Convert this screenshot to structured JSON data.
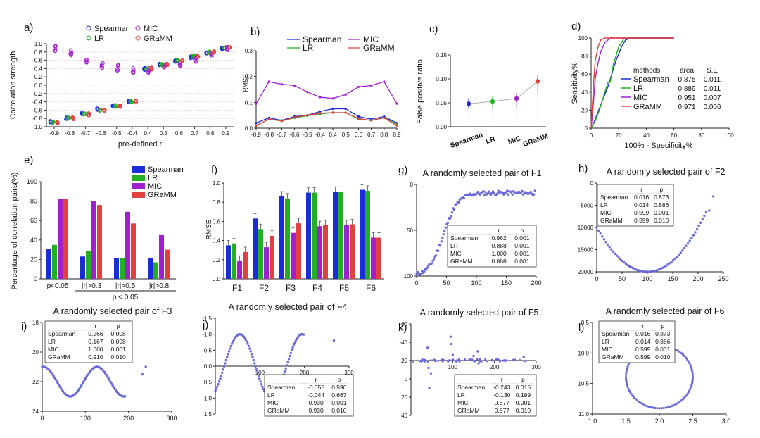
{
  "colors": {
    "spearman": "#1a2bd8",
    "lr": "#22b022",
    "mic": "#a020d0",
    "gramm": "#e04040",
    "point": "#6a6ad8",
    "axis": "#222222"
  },
  "series_names": [
    "Spearman",
    "LR",
    "MIC",
    "GRaMM"
  ],
  "panel_labels": [
    "a)",
    "b)",
    "c)",
    "d)",
    "e)",
    "f)",
    "g)",
    "h)",
    "i)",
    "j)",
    "k)",
    "l)"
  ],
  "chart_data": [
    {
      "id": "a",
      "type": "scatter",
      "ylabel": "Correlation strength",
      "xlabel": "pre-defined r",
      "categories": [
        "-0.9",
        "-0.8",
        "-0.7",
        "-0.6",
        "-0.5",
        "-0.4",
        "0.4",
        "0.5",
        "0.6",
        "0.7",
        "0.8",
        "0.9"
      ],
      "yticks": [
        "-1.0",
        "-0.8",
        "-0.6",
        "-0.4",
        "-0.2",
        "0.0",
        "0.2",
        "0.4",
        "0.6",
        "0.8",
        "1.0"
      ],
      "ylim": [
        -1,
        1
      ],
      "series": [
        {
          "name": "Spearman",
          "values": [
            -0.88,
            -0.79,
            -0.68,
            -0.58,
            -0.49,
            -0.39,
            0.39,
            0.49,
            0.58,
            0.68,
            0.79,
            0.88
          ]
        },
        {
          "name": "LR",
          "values": [
            -0.89,
            -0.8,
            -0.7,
            -0.6,
            -0.5,
            -0.4,
            0.4,
            0.5,
            0.6,
            0.7,
            0.8,
            0.9
          ]
        },
        {
          "name": "MIC",
          "values": [
            0.88,
            0.78,
            0.6,
            0.48,
            0.42,
            0.35,
            0.35,
            0.45,
            0.5,
            0.62,
            0.75,
            0.88
          ]
        },
        {
          "name": "GRaMM",
          "values": [
            -0.9,
            -0.8,
            -0.7,
            -0.6,
            -0.5,
            -0.4,
            0.4,
            0.5,
            0.6,
            0.7,
            0.8,
            0.9
          ]
        }
      ],
      "legend": "top"
    },
    {
      "id": "b",
      "type": "line",
      "ylabel": "RMSE",
      "categories": [
        "-0.9",
        "-0.8",
        "-0.7",
        "-0.6",
        "-0.5",
        "-0.4",
        "0.4",
        "0.5",
        "0.6",
        "0.7",
        "0.8",
        "0.9"
      ],
      "yticks": [
        "0.0",
        "0.1",
        "0.2",
        "0.3"
      ],
      "ylim": [
        0,
        0.3
      ],
      "series": [
        {
          "name": "Spearman",
          "values": [
            0.02,
            0.04,
            0.03,
            0.045,
            0.05,
            0.065,
            0.075,
            0.075,
            0.045,
            0.035,
            0.045,
            0.02
          ]
        },
        {
          "name": "LR",
          "values": [
            0.01,
            0.035,
            0.028,
            0.04,
            0.048,
            0.055,
            0.06,
            0.06,
            0.035,
            0.03,
            0.04,
            0.015
          ]
        },
        {
          "name": "MIC",
          "values": [
            0.095,
            0.18,
            0.17,
            0.165,
            0.14,
            0.12,
            0.115,
            0.13,
            0.16,
            0.165,
            0.18,
            0.095
          ]
        },
        {
          "name": "GRaMM",
          "values": [
            0.01,
            0.035,
            0.028,
            0.042,
            0.05,
            0.058,
            0.06,
            0.06,
            0.037,
            0.03,
            0.04,
            0.01
          ]
        }
      ],
      "legend": "top"
    },
    {
      "id": "c",
      "type": "scatter",
      "ylabel": "False positive ratio",
      "categories": [
        "Spearman",
        "LR",
        "MIC",
        "GRaMM"
      ],
      "yticks": [
        "0.00",
        "0.05",
        "0.10",
        "0.15"
      ],
      "ylim": [
        0,
        0.15
      ],
      "values": [
        0.048,
        0.053,
        0.059,
        0.095
      ]
    },
    {
      "id": "d",
      "type": "line",
      "ylabel": "Sensitivity%",
      "xlabel": "100% - Specificity%",
      "xticks": [
        "0",
        "20",
        "40",
        "60",
        "80",
        "100"
      ],
      "yticks": [
        "0",
        "20",
        "40",
        "60",
        "80",
        "100"
      ],
      "legend_header": [
        "methods",
        "area",
        "S.E"
      ],
      "legend_rows": [
        {
          "name": "Spearman",
          "area": "0.875",
          "se": "0.011"
        },
        {
          "name": "LR",
          "area": "0.889",
          "se": "0.011"
        },
        {
          "name": "MIC",
          "area": "0.951",
          "se": "0.007"
        },
        {
          "name": "GRaMM",
          "area": "0.971",
          "se": "0.006"
        }
      ]
    },
    {
      "id": "e",
      "type": "bar",
      "ylabel": "Percentage of correlation pairs(%)",
      "categories": [
        "p<0.05",
        "|r|>0.3",
        "|r|>0.5",
        "|r|>0.8"
      ],
      "group_label": "p < 0.05",
      "yticks": [
        "0",
        "20",
        "40",
        "60",
        "80",
        "100"
      ],
      "ylim": [
        0,
        100
      ],
      "series": [
        {
          "name": "Spearman",
          "values": [
            31,
            23,
            21,
            21
          ]
        },
        {
          "name": "LR",
          "values": [
            35,
            29,
            21,
            17
          ]
        },
        {
          "name": "MIC",
          "values": [
            82,
            80,
            69,
            45
          ]
        },
        {
          "name": "GRaMM",
          "values": [
            82,
            76,
            57,
            30
          ]
        }
      ],
      "legend": "top-right"
    },
    {
      "id": "f",
      "type": "bar",
      "ylabel": "RMSE",
      "categories": [
        "F1",
        "F2",
        "F3",
        "F4",
        "F5",
        "F6"
      ],
      "yticks": [
        "0.0",
        "0.2",
        "0.4",
        "0.6",
        "0.8",
        "1.0"
      ],
      "ylim": [
        0,
        1
      ],
      "series": [
        {
          "name": "Spearman",
          "values": [
            0.35,
            0.63,
            0.86,
            0.9,
            0.91,
            0.93
          ]
        },
        {
          "name": "LR",
          "values": [
            0.37,
            0.52,
            0.84,
            0.9,
            0.91,
            0.92
          ]
        },
        {
          "name": "MIC",
          "values": [
            0.19,
            0.33,
            0.48,
            0.55,
            0.56,
            0.43
          ]
        },
        {
          "name": "GRaMM",
          "values": [
            0.28,
            0.45,
            0.58,
            0.56,
            0.57,
            0.43
          ]
        }
      ]
    },
    {
      "id": "g",
      "type": "scatter",
      "title": "A randomly selected pair of F1",
      "xticks": [
        "0",
        "50",
        "100",
        "150",
        "200"
      ],
      "yticks": [
        "0",
        "50",
        "100"
      ],
      "xlim": [
        0,
        200
      ],
      "ylim": [
        0,
        110
      ],
      "table": [
        [
          "",
          "r",
          "p"
        ],
        [
          "Spearman",
          "0.962",
          "0.001"
        ],
        [
          "LR",
          "0.888",
          "0.001"
        ],
        [
          "MIC",
          "1.000",
          "0.001"
        ],
        [
          "GRaMM",
          "0.888",
          "0.001"
        ]
      ]
    },
    {
      "id": "h",
      "type": "scatter",
      "title": "A randomly selected pair of F2",
      "xticks": [
        "0",
        "50",
        "100",
        "150",
        "200",
        "250"
      ],
      "yticks": [
        "0",
        "5000",
        "10000",
        "15000",
        "20000"
      ],
      "xlim": [
        0,
        250
      ],
      "ylim": [
        0,
        20000
      ],
      "table": [
        [
          "",
          "r",
          "p"
        ],
        [
          "Spearman",
          "0.016",
          "0.873"
        ],
        [
          "LR",
          "0.014",
          "0.886"
        ],
        [
          "MIC",
          "0.599",
          "0.001"
        ],
        [
          "GRaMM",
          "0.599",
          "0.010"
        ]
      ]
    },
    {
      "id": "i",
      "type": "scatter",
      "title": "A randomly selected pair of F3",
      "xticks": [
        "0",
        "100",
        "200",
        "300"
      ],
      "yticks": [
        "18",
        "20",
        "22",
        "24"
      ],
      "xlim": [
        0,
        300
      ],
      "ylim": [
        18,
        24
      ],
      "table": [
        [
          "",
          "r",
          "p"
        ],
        [
          "Spearman",
          "0.266",
          "0.008"
        ],
        [
          "LR",
          "0.167",
          "0.098"
        ],
        [
          "MIC",
          "1.000",
          "0.001"
        ],
        [
          "GRaMM",
          "0.910",
          "0.010"
        ]
      ]
    },
    {
      "id": "j",
      "type": "scatter",
      "title": "A randomly selected pair of F4",
      "xticks": [
        "100",
        "200",
        "300"
      ],
      "yticks": [
        "-1.5",
        "-1.0",
        "-0.5",
        "0.0",
        "0.5",
        "1.0",
        "1.5"
      ],
      "xlim": [
        0,
        300
      ],
      "ylim": [
        -1.5,
        1.5
      ],
      "table": [
        [
          "",
          "r",
          "p"
        ],
        [
          "Spearman",
          "-0.055",
          "0.590"
        ],
        [
          "LR",
          "-0.044",
          "0.667"
        ],
        [
          "MIC",
          "0.930",
          "0.001"
        ],
        [
          "GRaMM",
          "0.930",
          "0.010"
        ]
      ]
    },
    {
      "id": "k",
      "type": "scatter",
      "title": "A randomly selected pair of F5",
      "xticks": [
        "100",
        "200",
        "300"
      ],
      "yticks": [
        "-60",
        "-40",
        "-20",
        "0",
        "20",
        "40"
      ],
      "xlim": [
        0,
        300
      ],
      "ylim": [
        -60,
        40
      ],
      "table": [
        [
          "",
          "r",
          "p"
        ],
        [
          "Spearman",
          "-0.243",
          "0.015"
        ],
        [
          "LR",
          "-0.130",
          "0.199"
        ],
        [
          "MIC",
          "0.877",
          "0.001"
        ],
        [
          "GRaMM",
          "0.877",
          "0.010"
        ]
      ]
    },
    {
      "id": "l",
      "type": "scatter",
      "title": "A randomly selected pair of F6",
      "xticks": [
        "1.0",
        "1.5",
        "2.0",
        "2.5",
        "3.0"
      ],
      "yticks": [
        "9.5",
        "10.0",
        "10.5",
        "11.0"
      ],
      "xlim": [
        1,
        3
      ],
      "ylim": [
        9.4,
        11
      ],
      "table": [
        [
          "",
          "r",
          "p"
        ],
        [
          "Spearman",
          "0.016",
          "0.873"
        ],
        [
          "LR",
          "0.014",
          "0.886"
        ],
        [
          "MIC",
          "0.599",
          "0.001"
        ],
        [
          "GRaMM",
          "0.599",
          "0.010"
        ]
      ]
    }
  ]
}
